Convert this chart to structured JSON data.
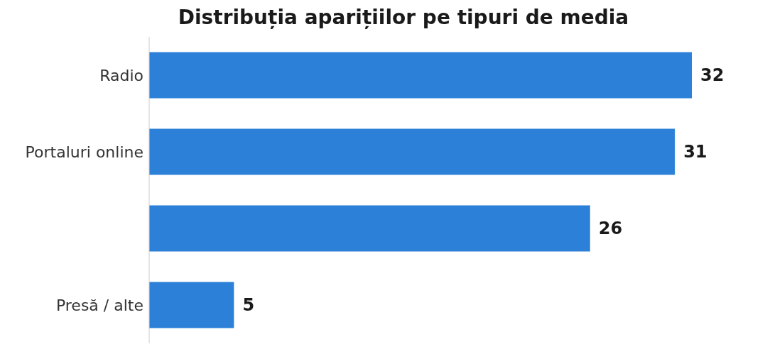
{
  "chart_data": {
    "type": "bar",
    "orientation": "horizontal",
    "title": "Distribuția aparițiilor pe tipuri de media",
    "categories": [
      "Radio",
      "Portaluri online",
      null,
      "Presă / alte"
    ],
    "values": [
      32,
      31,
      26,
      5
    ],
    "color": "#2c80d8",
    "data_labels": true
  }
}
